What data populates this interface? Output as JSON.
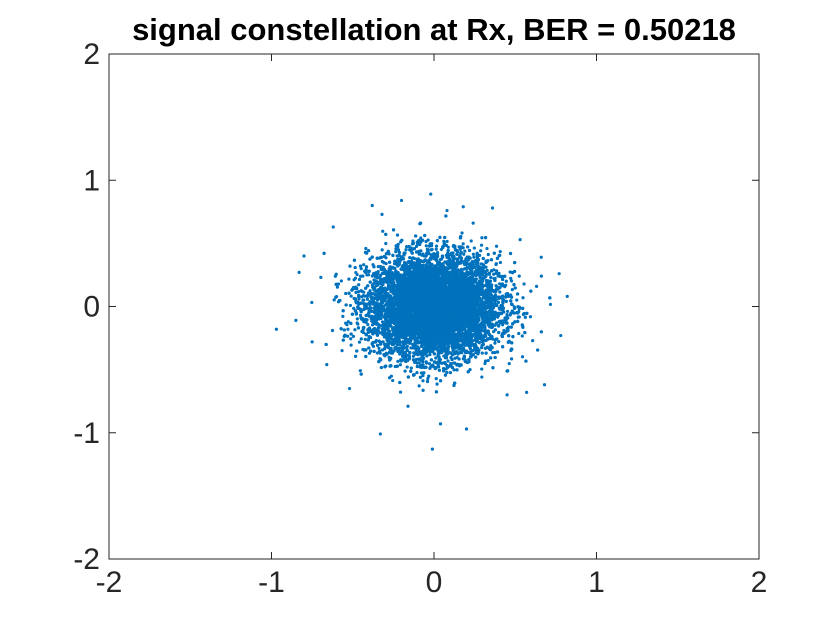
{
  "chart_data": {
    "type": "scatter",
    "title": "signal constellation at Rx, BER = 0.50218",
    "xlabel": "",
    "ylabel": "",
    "xlim": [
      -2,
      2
    ],
    "ylim": [
      -2,
      2
    ],
    "xticks": [
      -2,
      -1,
      0,
      1,
      2
    ],
    "yticks": [
      -2,
      -1,
      0,
      1,
      2
    ],
    "xtick_labels": [
      "-2",
      "-1",
      "0",
      "1",
      "2"
    ],
    "ytick_labels": [
      "-2",
      "-1",
      "0",
      "1",
      "2"
    ],
    "grid": false,
    "legend": "none",
    "marker_color": "#0072BD",
    "cluster": {
      "center": [
        0,
        0
      ],
      "approx_std": [
        0.2,
        0.2
      ],
      "approx_points": 10000
    },
    "points": [
      [
        -0.97,
        -0.18
      ],
      [
        -0.85,
        -0.11
      ],
      [
        -0.83,
        0.27
      ],
      [
        -0.8,
        0.4
      ],
      [
        -0.62,
        0.63
      ],
      [
        -0.38,
        0.8
      ],
      [
        -0.32,
        0.73
      ],
      [
        -0.2,
        0.84
      ],
      [
        -0.02,
        0.89
      ],
      [
        0.08,
        0.76
      ],
      [
        0.18,
        0.79
      ],
      [
        0.36,
        0.78
      ],
      [
        0.53,
        0.53
      ],
      [
        0.66,
        0.39
      ],
      [
        0.77,
        0.26
      ],
      [
        0.82,
        0.08
      ],
      [
        0.78,
        -0.23
      ],
      [
        0.68,
        -0.62
      ],
      [
        0.57,
        -0.68
      ],
      [
        0.45,
        -0.7
      ],
      [
        0.2,
        -0.97
      ],
      [
        0.04,
        -0.93
      ],
      [
        -0.01,
        -1.13
      ],
      [
        -0.16,
        -0.79
      ],
      [
        -0.33,
        -1.01
      ],
      [
        -0.52,
        -0.65
      ],
      [
        -0.66,
        -0.46
      ],
      [
        -0.75,
        -0.28
      ]
    ]
  }
}
